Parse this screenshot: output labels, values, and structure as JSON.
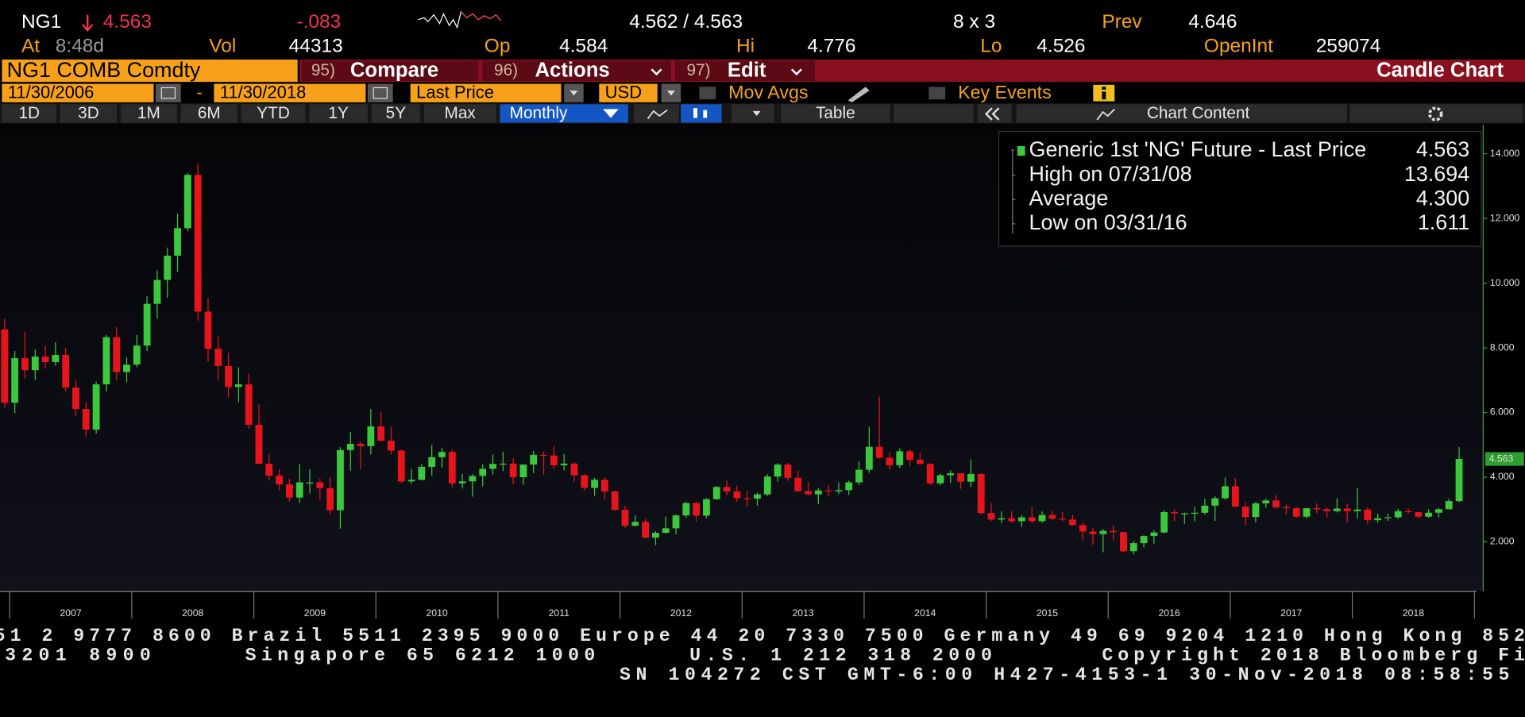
{
  "header": {
    "symbol": "NG1",
    "last": "4.563",
    "change": "-.083",
    "bid_ask": "4.562 / 4.563",
    "size": "8 x 3",
    "prev_label": "Prev",
    "prev": "4.646",
    "row2": [
      {
        "label": "At",
        "value": "8:48d"
      },
      {
        "label": "Vol",
        "value": "44313"
      },
      {
        "label": "Op",
        "value": "4.584"
      },
      {
        "label": "Hi",
        "value": "4.776"
      },
      {
        "label": "Lo",
        "value": "4.526"
      },
      {
        "label": "OpenInt",
        "value": "259074"
      }
    ]
  },
  "ticker_bar": {
    "security": "NG1 COMB Comdty",
    "menus": [
      {
        "num": "95)",
        "label": "Compare"
      },
      {
        "num": "96)",
        "label": "Actions"
      },
      {
        "num": "97)",
        "label": "Edit"
      }
    ],
    "chart_title": "Candle Chart"
  },
  "settings": {
    "start": "11/30/2006",
    "separator": "-",
    "end": "11/30/2018",
    "field": "Last Price",
    "currency": "USD",
    "mov_avgs": "Mov Avgs",
    "key_events": "Key Events"
  },
  "toolbar": {
    "ranges": [
      "1D",
      "3D",
      "1M",
      "6M",
      "YTD",
      "1Y",
      "5Y",
      "Max"
    ],
    "period": "Monthly",
    "table": "Table",
    "chart_content": "Chart Content"
  },
  "chart_data": {
    "type": "candlestick",
    "up_color": "#3cc83c",
    "down_color": "#e8141c",
    "ylim": [
      0.47,
      14.9
    ],
    "yticks": [
      {
        "value": 2,
        "label": "2.000"
      },
      {
        "value": 4,
        "label": "4.000"
      },
      {
        "value": 6,
        "label": "6.000"
      },
      {
        "value": 8,
        "label": "8.000"
      },
      {
        "value": 10,
        "label": "10.000"
      },
      {
        "value": 12,
        "label": "12.000"
      },
      {
        "value": 14,
        "label": "14.000"
      }
    ],
    "grid": false,
    "year_labels": [
      "2007",
      "2008",
      "2009",
      "2010",
      "2011",
      "2012",
      "2013",
      "2014",
      "2015",
      "2016",
      "2017",
      "2018"
    ],
    "legend_box": {
      "title": "Generic 1st 'NG' Future - Last Price",
      "title_value": "4.563",
      "rows": [
        {
          "label": "High on 07/31/08",
          "value": "13.694"
        },
        {
          "label": "Average",
          "value": "4.300"
        },
        {
          "label": "Low on 03/31/16",
          "value": "1.611"
        }
      ]
    },
    "open": [
      8.57,
      6.3,
      7.68,
      7.31,
      7.73,
      7.56,
      7.78,
      6.77,
      6.11,
      5.47,
      6.87,
      8.33,
      7.25,
      7.48,
      8.07,
      9.36,
      10.1,
      10.85,
      11.7,
      13.35,
      9.12,
      7.97,
      7.44,
      6.79,
      6.87,
      5.62,
      4.42,
      4.05,
      3.78,
      3.37,
      3.84,
      3.84,
      3.66,
      2.98,
      4.84,
      5.03,
      4.96,
      5.57,
      5.13,
      4.82,
      3.87,
      3.92,
      4.32,
      4.62,
      4.78,
      3.81,
      3.87,
      4.04,
      4.26,
      4.41,
      4.42,
      4.0,
      4.39,
      4.69,
      4.67,
      4.37,
      4.42,
      4.06,
      3.67,
      3.92,
      3.56,
      2.99,
      2.5,
      2.62,
      2.13,
      2.28,
      2.42,
      2.82,
      3.2,
      2.81,
      3.32,
      3.7,
      3.56,
      3.35,
      3.34,
      3.47,
      4.02,
      4.39,
      3.98,
      3.57,
      3.47,
      3.59,
      3.56,
      3.6,
      3.84,
      4.23,
      4.94,
      4.6,
      4.37,
      4.8,
      4.54,
      4.41,
      3.81,
      4.06,
      4.12,
      3.86,
      4.1,
      2.89,
      2.69,
      2.73,
      2.64,
      2.76,
      2.64,
      2.83,
      2.72,
      2.69,
      2.52,
      2.32,
      2.24,
      2.34,
      2.3,
      1.71,
      1.96,
      2.18,
      2.29,
      2.92,
      2.88,
      2.88,
      2.9,
      3.12,
      3.35,
      3.72,
      3.09,
      2.77,
      3.19,
      3.28,
      3.07,
      3.04,
      2.78,
      3.04,
      3.01,
      2.95,
      3.03,
      2.95,
      3.0,
      2.67,
      2.73,
      2.76,
      2.95,
      2.92,
      2.78,
      2.9,
      3.01,
      3.26
    ],
    "high": [
      8.9,
      7.9,
      8.5,
      7.95,
      8.07,
      8.17,
      8.0,
      7.0,
      6.33,
      6.95,
      8.4,
      8.64,
      7.7,
      8.4,
      9.6,
      10.4,
      11.1,
      12.15,
      13.4,
      13.694,
      9.55,
      8.35,
      7.85,
      7.4,
      7.2,
      6.25,
      4.7,
      4.25,
      3.95,
      4.4,
      4.25,
      3.95,
      4.0,
      4.93,
      5.4,
      5.1,
      6.11,
      6.01,
      5.55,
      4.85,
      4.25,
      4.4,
      5.0,
      4.9,
      4.85,
      4.1,
      4.09,
      4.4,
      4.7,
      4.79,
      4.58,
      4.4,
      4.81,
      4.8,
      4.96,
      4.72,
      4.46,
      4.09,
      3.98,
      4.0,
      3.6,
      3.11,
      2.82,
      2.71,
      2.33,
      2.78,
      2.85,
      3.24,
      3.24,
      3.35,
      3.72,
      3.9,
      3.74,
      3.58,
      3.52,
      4.09,
      4.44,
      4.44,
      4.2,
      3.85,
      3.66,
      3.76,
      3.84,
      3.89,
      4.49,
      5.56,
      6.49,
      4.76,
      4.89,
      4.85,
      4.75,
      4.43,
      4.11,
      4.21,
      4.12,
      4.55,
      4.12,
      3.2,
      2.95,
      2.95,
      2.83,
      3.1,
      2.94,
      2.97,
      2.93,
      2.83,
      2.6,
      2.44,
      2.4,
      2.51,
      2.31,
      2.03,
      2.2,
      2.36,
      2.98,
      3.0,
      2.9,
      3.08,
      3.33,
      3.41,
      3.99,
      3.97,
      3.22,
      3.24,
      3.34,
      3.45,
      3.15,
      3.08,
      3.05,
      3.19,
      3.06,
      3.35,
      3.17,
      3.66,
      3.07,
      2.87,
      2.87,
      3.02,
      3.04,
      2.93,
      3.01,
      3.05,
      3.33,
      4.93
    ],
    "low": [
      6.15,
      5.98,
      7.05,
      7.0,
      7.35,
      7.45,
      6.65,
      5.9,
      5.26,
      5.35,
      6.65,
      7.0,
      6.94,
      7.4,
      7.9,
      8.9,
      9.55,
      10.35,
      11.6,
      8.84,
      7.57,
      7.0,
      6.45,
      6.32,
      5.5,
      4.4,
      3.9,
      3.6,
      3.25,
      3.2,
      3.5,
      3.28,
      2.85,
      2.41,
      4.2,
      4.25,
      4.7,
      5.1,
      4.7,
      3.82,
      3.8,
      3.9,
      4.05,
      4.3,
      3.7,
      3.65,
      3.4,
      3.72,
      4.08,
      4.19,
      3.78,
      3.77,
      4.12,
      4.07,
      4.26,
      4.21,
      3.86,
      3.6,
      3.42,
      3.32,
      2.96,
      2.43,
      2.47,
      2.12,
      1.9,
      2.26,
      2.24,
      2.75,
      2.63,
      2.73,
      3.3,
      3.44,
      3.25,
      3.09,
      3.12,
      3.42,
      3.86,
      3.89,
      3.55,
      3.44,
      3.17,
      3.4,
      3.48,
      3.45,
      3.76,
      4.14,
      4.57,
      4.24,
      4.29,
      4.34,
      4.39,
      3.75,
      3.76,
      3.82,
      3.64,
      3.7,
      2.85,
      2.64,
      2.58,
      2.59,
      2.47,
      2.58,
      2.59,
      2.67,
      2.64,
      2.5,
      2.03,
      1.91,
      1.68,
      2.05,
      1.68,
      1.611,
      1.83,
      1.94,
      2.26,
      2.65,
      2.56,
      2.64,
      2.85,
      2.65,
      3.3,
      3.07,
      2.52,
      2.6,
      3.05,
      3.03,
      2.84,
      2.74,
      2.72,
      2.88,
      2.75,
      2.91,
      2.6,
      2.73,
      2.55,
      2.59,
      2.65,
      2.72,
      2.87,
      2.72,
      2.75,
      2.75,
      3.01,
      3.23
    ],
    "close": [
      6.3,
      7.68,
      7.31,
      7.73,
      7.56,
      7.78,
      6.77,
      6.11,
      5.47,
      6.87,
      8.33,
      7.25,
      7.48,
      8.07,
      9.36,
      10.1,
      10.85,
      11.7,
      13.35,
      9.12,
      7.97,
      7.44,
      6.79,
      6.87,
      5.62,
      4.42,
      4.05,
      3.78,
      3.37,
      3.84,
      3.84,
      3.66,
      2.98,
      4.84,
      5.03,
      4.96,
      5.57,
      5.13,
      4.82,
      3.87,
      3.92,
      4.32,
      4.62,
      4.78,
      3.81,
      3.87,
      4.04,
      4.26,
      4.41,
      4.42,
      4.0,
      4.39,
      4.69,
      4.67,
      4.37,
      4.42,
      4.06,
      3.67,
      3.92,
      3.56,
      2.99,
      2.5,
      2.62,
      2.13,
      2.28,
      2.42,
      2.82,
      3.2,
      2.81,
      3.32,
      3.7,
      3.56,
      3.35,
      3.34,
      3.47,
      4.02,
      4.39,
      3.98,
      3.57,
      3.47,
      3.59,
      3.56,
      3.6,
      3.84,
      4.23,
      4.94,
      4.6,
      4.37,
      4.8,
      4.54,
      4.41,
      3.81,
      4.06,
      4.12,
      3.86,
      4.1,
      2.89,
      2.69,
      2.73,
      2.64,
      2.76,
      2.64,
      2.83,
      2.72,
      2.69,
      2.52,
      2.32,
      2.24,
      2.34,
      2.3,
      1.71,
      1.96,
      2.18,
      2.29,
      2.92,
      2.88,
      2.88,
      2.9,
      3.12,
      3.35,
      3.72,
      3.09,
      2.77,
      3.19,
      3.28,
      3.07,
      3.04,
      2.78,
      3.04,
      3.01,
      2.95,
      3.03,
      2.95,
      3.0,
      2.67,
      2.73,
      2.76,
      2.95,
      2.92,
      2.78,
      2.9,
      3.01,
      3.26,
      4.563
    ]
  },
  "footer": {
    "line1": "51 2 9777 8600 Brazil 5511 2395 9000 Europe 44 20 7330 7500 Germany 49 69 9204 1210 Hong Kong 852",
    "line2": [
      "3201 8900",
      "Singapore 65 6212 1000",
      "U.S. 1 212 318 2000",
      "Copyright 2018 Bloomberg Fi"
    ],
    "line3": "SN 104272 CST  GMT-6:00 H427-4153-1 30-Nov-2018 08:58:55"
  }
}
